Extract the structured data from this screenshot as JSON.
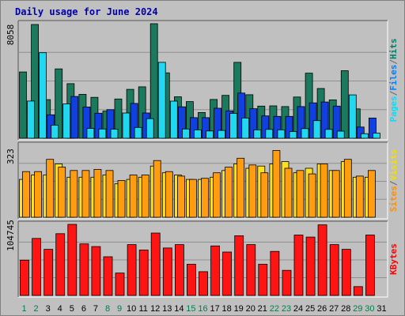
{
  "chart_data": {
    "title": "Daily usage for June 2024",
    "days": [
      "1",
      "2",
      "3",
      "4",
      "5",
      "6",
      "7",
      "8",
      "9",
      "10",
      "11",
      "12",
      "13",
      "14",
      "15",
      "16",
      "17",
      "18",
      "19",
      "20",
      "21",
      "22",
      "23",
      "24",
      "25",
      "26",
      "27",
      "28",
      "29",
      "30",
      "31"
    ],
    "weekend_days": [
      "1",
      "2",
      "8",
      "9",
      "15",
      "16",
      "22",
      "23",
      "29",
      "30"
    ],
    "panels": [
      {
        "type": "bar",
        "ymax_label": "8058",
        "ymax": 8058,
        "legend": [
          {
            "text": "Hits",
            "color": "#00806b"
          },
          {
            "text": "/",
            "color": "#666666"
          },
          {
            "text": "Files",
            "color": "#0080ff"
          },
          {
            "text": "/",
            "color": "#666666"
          },
          {
            "text": "Pages",
            "color": "#00e0ff"
          }
        ],
        "series": [
          {
            "name": "Hits",
            "color": "#1b7a5d",
            "values": [
              4660,
              8000,
              2720,
              4880,
              3840,
              3090,
              2880,
              1910,
              2760,
              3440,
              3620,
              8058,
              4600,
              2920,
              2580,
              1810,
              2730,
              3020,
              5340,
              3060,
              2260,
              2280,
              2230,
              2900,
              4580,
              3500,
              2700,
              4750,
              2070,
              null,
              null
            ]
          },
          {
            "name": "Files",
            "color": "#1040e0",
            "values": [
              null,
              null,
              1650,
              null,
              2940,
              2200,
              1760,
              2010,
              null,
              2450,
              1780,
              null,
              null,
              2210,
              1450,
              1450,
              2110,
              1930,
              3180,
              2080,
              1570,
              1540,
              1540,
              2230,
              2490,
              2550,
              2260,
              null,
              790,
              1420,
              null
            ]
          },
          {
            "name": "Pages",
            "color": "#20d8f0",
            "values": [
              2620,
              6020,
              920,
              2420,
              null,
              690,
              650,
              640,
              1780,
              760,
              1380,
              5340,
              2610,
              650,
              590,
              510,
              550,
              1750,
              1420,
              590,
              620,
              590,
              470,
              680,
              1240,
              620,
              500,
              3050,
              320,
              360,
              null
            ]
          }
        ]
      },
      {
        "type": "bar",
        "ymax_label": "323",
        "ymax": 323,
        "legend": [
          {
            "text": "Visits",
            "color": "#f0e000"
          },
          {
            "text": "/",
            "color": "#666666"
          },
          {
            "text": "Sites",
            "color": "#ff9000"
          }
        ],
        "series": [
          {
            "name": "Visits",
            "color": "#ffe020",
            "values": [
              170,
              190,
              190,
              240,
              180,
              180,
              180,
              190,
              150,
              170,
              180,
              230,
              200,
              190,
              170,
              170,
              180,
              210,
              240,
              220,
              230,
              240,
              250,
              200,
              220,
              240,
              210,
              250,
              180,
              180,
              null
            ]
          },
          {
            "name": "Sites",
            "color": "#ff9c10",
            "values": [
              205,
              205,
              260,
              225,
              210,
              210,
              215,
              210,
              165,
              190,
              190,
              255,
              205,
              185,
              170,
              175,
              200,
              225,
              265,
              235,
              200,
              300,
              220,
              210,
              195,
              240,
              210,
              260,
              185,
              210,
              null
            ]
          }
        ]
      },
      {
        "type": "bar",
        "ymax_label": "104745",
        "ymax": 104745,
        "legend": [
          {
            "text": "KBytes",
            "color": "#ff0000"
          }
        ],
        "series": [
          {
            "name": "KBytes",
            "color": "#ff1414",
            "values": [
              52000,
              84000,
              68000,
              91000,
              104745,
              76000,
              72000,
              57000,
              33000,
              75000,
              67000,
              92000,
              70000,
              75000,
              46000,
              35000,
              73000,
              64000,
              88000,
              75000,
              46000,
              65000,
              37000,
              89000,
              86000,
              104000,
              75000,
              68000,
              13000,
              89000,
              null
            ]
          }
        ]
      }
    ]
  }
}
